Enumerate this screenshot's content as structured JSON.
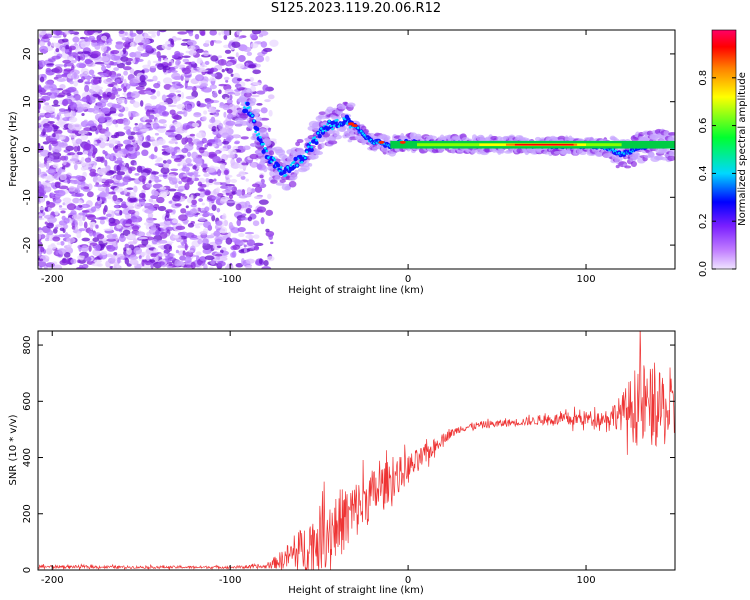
{
  "title": "S125.2023.119.20.06.R12",
  "chart_data": [
    {
      "type": "heatmap",
      "xlabel": "Height of straight line (km)",
      "ylabel": "Frequency (Hz)",
      "xlim": [
        -208,
        150
      ],
      "ylim": [
        -25,
        25
      ],
      "xticks": [
        -200,
        -100,
        0,
        100
      ],
      "yticks": [
        -20,
        -10,
        0,
        10,
        20
      ],
      "colorbar": {
        "label": "Normalized spectral amplitude",
        "range": [
          0,
          1
        ],
        "ticks": [
          "0.0",
          "0.2",
          "0.4",
          "0.6",
          "0.8"
        ],
        "colors": [
          "#e8d8ff",
          "#8a2be2",
          "#0000ff",
          "#00e5ff",
          "#00ff40",
          "#ffff00",
          "#ff8000",
          "#ff0000",
          "#ff0066"
        ]
      },
      "ridge": {
        "x": [
          -90,
          -80,
          -70,
          -60,
          -50,
          -45,
          -40,
          -35,
          -30,
          -25,
          -20,
          -15,
          -10,
          -5,
          0,
          10,
          20,
          40,
          60,
          80,
          100,
          110,
          120,
          125,
          130,
          140,
          150
        ],
        "freq": [
          9,
          -1,
          -5,
          -2,
          3,
          5,
          5.5,
          6,
          5,
          3,
          1.5,
          1.5,
          0.5,
          1.5,
          1.5,
          1.2,
          1.2,
          1,
          1,
          0.8,
          0.8,
          0.5,
          -1,
          -0.5,
          0.5,
          1,
          0.5
        ]
      },
      "reference_band": {
        "x": [
          -10,
          150
        ],
        "freq": [
          0.2,
          1.8
        ]
      }
    },
    {
      "type": "line",
      "xlabel": "Height of straight line (km)",
      "ylabel": "SNR (10 * v/v)",
      "xlim": [
        -208,
        150
      ],
      "ylim": [
        0,
        850
      ],
      "xticks": [
        -200,
        -100,
        0,
        100
      ],
      "yticks": [
        0,
        200,
        400,
        600,
        800
      ],
      "color": "#ee3333",
      "envelope": {
        "x": [
          -208,
          -150,
          -100,
          -80,
          -70,
          -60,
          -50,
          -40,
          -30,
          -20,
          -10,
          0,
          10,
          20,
          30,
          40,
          60,
          80,
          90,
          100,
          110,
          120,
          130,
          140,
          150
        ],
        "mean": [
          12,
          10,
          10,
          12,
          40,
          70,
          110,
          160,
          210,
          270,
          320,
          360,
          410,
          470,
          505,
          515,
          525,
          535,
          535,
          540,
          540,
          560,
          590,
          570,
          560
        ],
        "amp": [
          6,
          5,
          5,
          8,
          40,
          90,
          130,
          140,
          120,
          100,
          80,
          60,
          40,
          20,
          15,
          15,
          15,
          20,
          30,
          30,
          30,
          70,
          180,
          150,
          130
        ]
      }
    }
  ]
}
